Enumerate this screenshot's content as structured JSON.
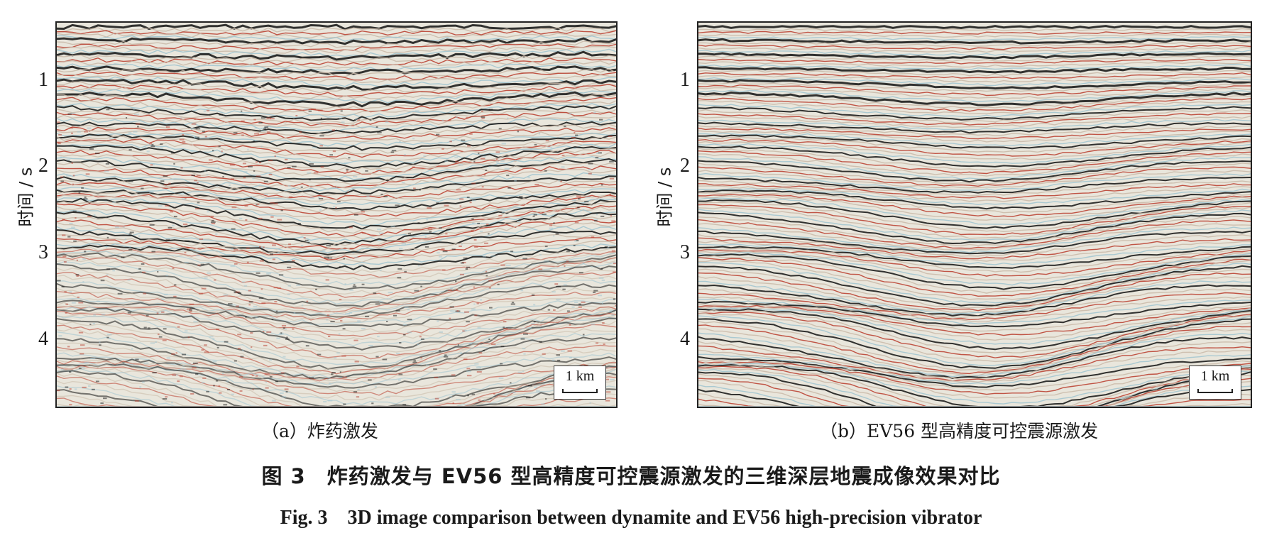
{
  "panels": [
    {
      "id": "a",
      "subcaption": "（a）炸药激发",
      "ylabel": "时间 / s",
      "yticks": [
        "1",
        "2",
        "3",
        "4"
      ],
      "scalebar": "1 km",
      "colors": {
        "peak": "#111111",
        "trough": "#b83a2a",
        "neutral": "#e9e6dc",
        "tint": "#9fc3cf"
      }
    },
    {
      "id": "b",
      "subcaption": "（b）EV56 型高精度可控震源激发",
      "ylabel": "时间 / s",
      "yticks": [
        "1",
        "2",
        "3",
        "4"
      ],
      "scalebar": "1 km",
      "colors": {
        "peak": "#111111",
        "trough": "#b83a2a",
        "neutral": "#e9e6dc",
        "tint": "#9fc3cf"
      }
    }
  ],
  "caption": {
    "cn": "图 3　炸药激发与 EV56 型高精度可控震源激发的三维深层地震成像效果对比",
    "en": "Fig. 3　3D image comparison between dynamite and EV56 high-precision vibrator"
  }
}
